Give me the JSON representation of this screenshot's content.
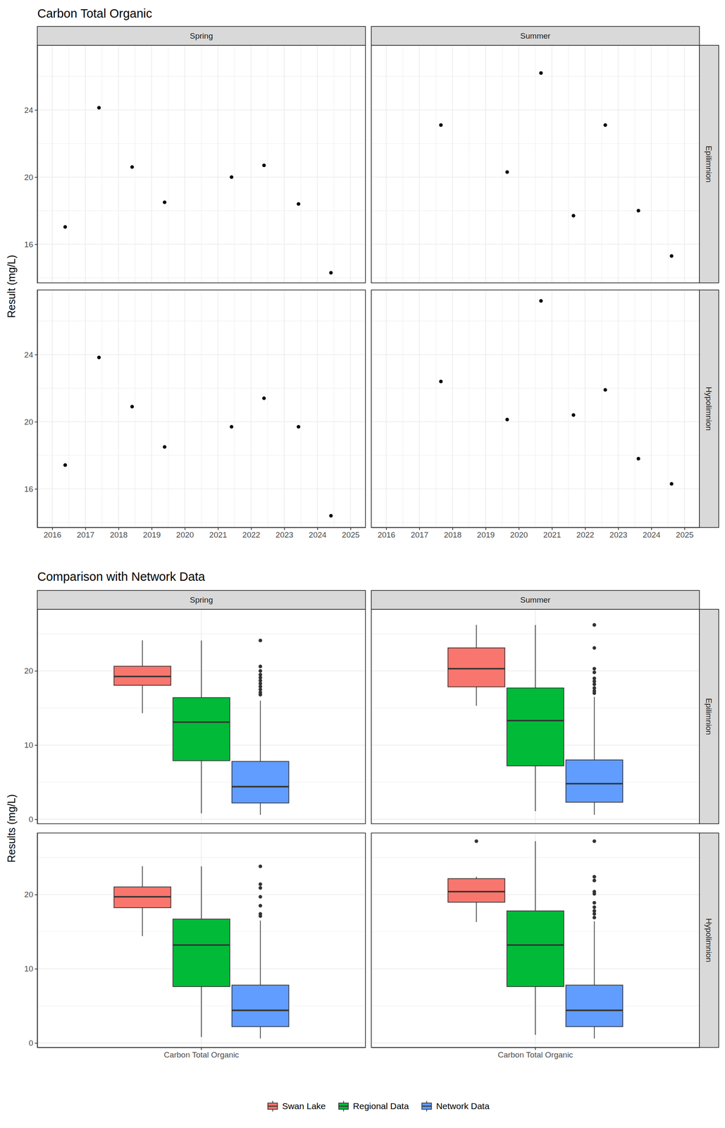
{
  "chart_data": [
    {
      "type": "scatter",
      "title": "Carbon Total Organic",
      "y_label": "Result (mg/L)",
      "facets": {
        "columns": [
          "Spring",
          "Summer"
        ],
        "rows": [
          "Epilimnion",
          "Hypolimnion"
        ]
      },
      "xlim": [
        2015.55,
        2025.45
      ],
      "xticks": [
        2016,
        2017,
        2018,
        2019,
        2020,
        2021,
        2022,
        2023,
        2024,
        2025
      ],
      "ylim": [
        13.7,
        27.85
      ],
      "yticks": [
        16,
        20,
        24
      ],
      "grid": true,
      "color": "#000000",
      "marker": "circle",
      "panels": [
        [
          {
            "x": [
              2016.39,
              2017.41,
              2018.41,
              2019.39,
              2021.41,
              2022.39,
              2023.43,
              2024.41
            ],
            "values": [
              17.03,
              24.13,
              20.6,
              18.5,
              20.0,
              20.7,
              18.4,
              14.3
            ]
          },
          {
            "x": [
              2017.65,
              2019.65,
              2020.67,
              2021.65,
              2022.61,
              2023.61,
              2024.61
            ],
            "values": [
              23.1,
              20.3,
              26.2,
              17.7,
              23.1,
              18.0,
              15.3
            ]
          }
        ],
        [
          {
            "x": [
              2016.39,
              2017.41,
              2018.41,
              2019.39,
              2021.41,
              2022.39,
              2023.43,
              2024.41
            ],
            "values": [
              17.42,
              23.83,
              20.9,
              18.5,
              19.7,
              21.4,
              19.7,
              14.4
            ]
          },
          {
            "x": [
              2017.65,
              2019.65,
              2020.67,
              2021.65,
              2022.61,
              2023.61,
              2024.61
            ],
            "values": [
              22.4,
              20.13,
              27.2,
              20.4,
              21.9,
              17.8,
              16.3
            ]
          }
        ]
      ]
    },
    {
      "type": "box",
      "title": "Comparison with Network Data",
      "y_label": "Results (mg/L)",
      "categories": [
        "Carbon Total Organic"
      ],
      "facets": {
        "columns": [
          "Spring",
          "Summer"
        ],
        "rows": [
          "Epilimnion",
          "Hypolimnion"
        ]
      },
      "ylim": [
        -0.6,
        28.3
      ],
      "yticks": [
        0,
        10,
        20
      ],
      "grid": true,
      "legend": "bottom",
      "series": [
        {
          "name": "Swan Lake",
          "color": "#F8766D"
        },
        {
          "name": "Regional Data",
          "color": "#00BA38"
        },
        {
          "name": "Network Data",
          "color": "#619CFF"
        }
      ],
      "panels": [
        [
          {
            "boxes": [
              {
                "whisker_low": 14.3,
                "q1": 18.06,
                "median": 19.25,
                "q3": 20.63,
                "whisker_high": 24.13,
                "outliers": []
              },
              {
                "whisker_low": 0.8,
                "q1": 7.9,
                "median": 13.1,
                "q3": 16.4,
                "whisker_high": 24.1,
                "outliers": []
              },
              {
                "whisker_low": 0.6,
                "q1": 2.2,
                "median": 4.4,
                "q3": 7.8,
                "whisker_high": 16.0,
                "outliers": [
                  24.1,
                  20.6,
                  20.0,
                  19.5,
                  19.1,
                  18.7,
                  18.3,
                  17.9,
                  17.5,
                  17.1,
                  16.8
                ]
              }
            ]
          },
          {
            "boxes": [
              {
                "whisker_low": 15.3,
                "q1": 17.85,
                "median": 20.3,
                "q3": 23.1,
                "whisker_high": 26.2,
                "outliers": []
              },
              {
                "whisker_low": 1.1,
                "q1": 7.2,
                "median": 13.3,
                "q3": 17.7,
                "whisker_high": 26.2,
                "outliers": []
              },
              {
                "whisker_low": 0.6,
                "q1": 2.3,
                "median": 4.8,
                "q3": 8.0,
                "whisker_high": 16.5,
                "outliers": [
                  26.2,
                  23.1,
                  20.3,
                  19.8,
                  19.0,
                  18.6,
                  18.2,
                  17.7,
                  17.3,
                  17.0
                ]
              }
            ]
          }
        ],
        [
          {
            "boxes": [
              {
                "whisker_low": 14.4,
                "q1": 18.23,
                "median": 19.7,
                "q3": 21.03,
                "whisker_high": 23.83,
                "outliers": []
              },
              {
                "whisker_low": 0.8,
                "q1": 7.6,
                "median": 13.2,
                "q3": 16.7,
                "whisker_high": 23.8,
                "outliers": []
              },
              {
                "whisker_low": 0.6,
                "q1": 2.2,
                "median": 4.4,
                "q3": 7.8,
                "whisker_high": 16.5,
                "outliers": [
                  23.8,
                  21.4,
                  20.9,
                  19.7,
                  18.5,
                  17.4,
                  17.1
                ]
              }
            ]
          },
          {
            "boxes": [
              {
                "whisker_low": 16.3,
                "q1": 18.97,
                "median": 20.4,
                "q3": 22.15,
                "whisker_high": 22.4,
                "outliers": [
                  27.2
                ]
              },
              {
                "whisker_low": 1.1,
                "q1": 7.6,
                "median": 13.2,
                "q3": 17.8,
                "whisker_high": 27.2,
                "outliers": []
              },
              {
                "whisker_low": 0.6,
                "q1": 2.2,
                "median": 4.4,
                "q3": 7.8,
                "whisker_high": 16.4,
                "outliers": [
                  27.2,
                  22.4,
                  21.9,
                  20.4,
                  20.1,
                  18.9,
                  18.3,
                  17.8,
                  17.4,
                  16.9
                ]
              }
            ]
          }
        ]
      ]
    }
  ]
}
